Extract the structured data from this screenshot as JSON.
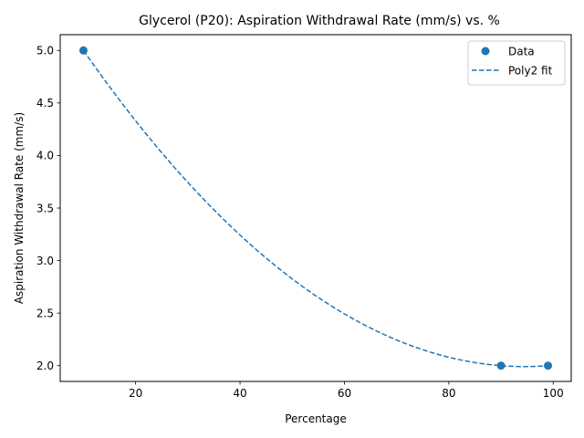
{
  "chart_data": {
    "type": "scatter",
    "title": "Glycerol (P20): Aspiration Withdrawal Rate (mm/s) vs. %",
    "xlabel": "Percentage",
    "ylabel": "Aspiration Withdrawal Rate (mm/s)",
    "xlim": [
      5.55,
      103.45
    ],
    "ylim": [
      1.85,
      5.15
    ],
    "xticks": [
      20,
      40,
      60,
      80,
      100
    ],
    "yticks": [
      2.0,
      2.5,
      3.0,
      3.5,
      4.0,
      4.5,
      5.0
    ],
    "xtick_labels": [
      "20",
      "40",
      "60",
      "80",
      "100"
    ],
    "ytick_labels": [
      "2.0",
      "2.5",
      "3.0",
      "3.5",
      "4.0",
      "4.5",
      "5.0"
    ],
    "grid": false,
    "legend_position": "top-right",
    "series": [
      {
        "name": "Data",
        "kind": "scatter",
        "color": "#1f77b4",
        "x": [
          10,
          90,
          99
        ],
        "y": [
          5.0,
          2.0,
          2.0
        ]
      },
      {
        "name": "Poly2 fit",
        "kind": "line",
        "style": "dashed",
        "color": "#1f77b4",
        "fit": "poly2",
        "fit_x_range": [
          10,
          99
        ]
      }
    ]
  }
}
